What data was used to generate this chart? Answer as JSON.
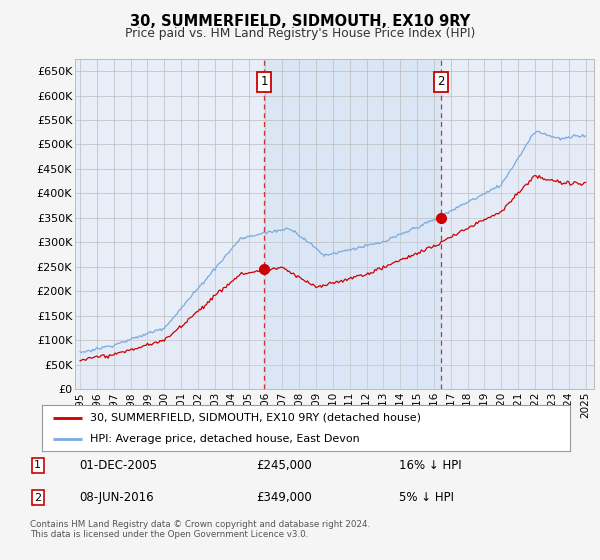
{
  "title": "30, SUMMERFIELD, SIDMOUTH, EX10 9RY",
  "subtitle": "Price paid vs. HM Land Registry's House Price Index (HPI)",
  "legend_line1": "30, SUMMERFIELD, SIDMOUTH, EX10 9RY (detached house)",
  "legend_line2": "HPI: Average price, detached house, East Devon",
  "footnote": "Contains HM Land Registry data © Crown copyright and database right 2024.\nThis data is licensed under the Open Government Licence v3.0.",
  "transaction1_date": "01-DEC-2005",
  "transaction1_price": "£245,000",
  "transaction1_hpi": "16% ↓ HPI",
  "transaction1_year": 2005.917,
  "transaction1_value": 245000,
  "transaction2_date": "08-JUN-2016",
  "transaction2_price": "£349,000",
  "transaction2_hpi": "5% ↓ HPI",
  "transaction2_year": 2016.44,
  "transaction2_value": 349000,
  "ylim": [
    0,
    675000
  ],
  "xlim": [
    1994.7,
    2025.5
  ],
  "yticks": [
    0,
    50000,
    100000,
    150000,
    200000,
    250000,
    300000,
    350000,
    400000,
    450000,
    500000,
    550000,
    600000,
    650000
  ],
  "ytick_labels": [
    "£0",
    "£50K",
    "£100K",
    "£150K",
    "£200K",
    "£250K",
    "£300K",
    "£350K",
    "£400K",
    "£450K",
    "£500K",
    "£550K",
    "£600K",
    "£650K"
  ],
  "xticks": [
    1995,
    1996,
    1997,
    1998,
    1999,
    2000,
    2001,
    2002,
    2003,
    2004,
    2005,
    2006,
    2007,
    2008,
    2009,
    2010,
    2011,
    2012,
    2013,
    2014,
    2015,
    2016,
    2017,
    2018,
    2019,
    2020,
    2021,
    2022,
    2023,
    2024,
    2025
  ],
  "background_color": "#e8eef8",
  "fig_bg_color": "#f5f5f5",
  "red_line_color": "#cc0000",
  "blue_line_color": "#7aaadd",
  "blue_fill_color": "#dae6f5",
  "grid_color": "#bbbbbb",
  "marker_box_edge": "#cc0000",
  "dashed_line_color": "#cc3333"
}
